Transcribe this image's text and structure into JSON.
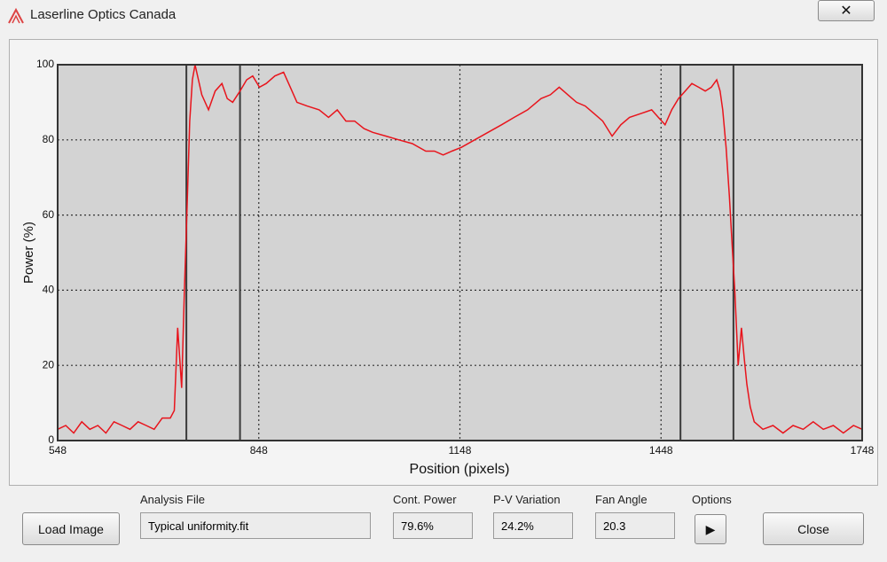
{
  "window": {
    "title": "Laserline Optics Canada"
  },
  "chart_data": {
    "type": "line",
    "ylabel": "Power (%)",
    "xlabel": "Position (pixels)",
    "xlim": [
      548,
      1748
    ],
    "xticks": [
      548,
      848,
      1148,
      1448,
      1748
    ],
    "ylim": [
      0,
      100
    ],
    "yticks": [
      0,
      20,
      40,
      60,
      80,
      100
    ],
    "grid": true,
    "color": "#e8141c",
    "marker_color": "#3a3a3a",
    "markers": [
      740,
      820,
      1477,
      1556
    ],
    "x": [
      548,
      560,
      572,
      584,
      596,
      608,
      620,
      632,
      644,
      656,
      668,
      680,
      692,
      704,
      716,
      722,
      727,
      730,
      733,
      737,
      741,
      745,
      749,
      753,
      763,
      773,
      783,
      793,
      801,
      809,
      820,
      830,
      839,
      849,
      859,
      872,
      885,
      895,
      905,
      920,
      938,
      952,
      965,
      978,
      991,
      1005,
      1018,
      1038,
      1057,
      1077,
      1097,
      1110,
      1123,
      1136,
      1150,
      1170,
      1190,
      1210,
      1229,
      1249,
      1269,
      1283,
      1296,
      1309,
      1322,
      1335,
      1348,
      1361,
      1375,
      1388,
      1401,
      1418,
      1434,
      1444,
      1454,
      1464,
      1474,
      1484,
      1494,
      1504,
      1514,
      1523,
      1531,
      1536,
      1540,
      1545,
      1550,
      1554,
      1558,
      1561,
      1563,
      1566,
      1568,
      1572,
      1576,
      1581,
      1587,
      1600,
      1615,
      1630,
      1645,
      1660,
      1675,
      1690,
      1705,
      1720,
      1735,
      1748
    ],
    "values": [
      3,
      4,
      2,
      5,
      3,
      4,
      2,
      5,
      4,
      3,
      5,
      4,
      3,
      6,
      6,
      8,
      30,
      22,
      14,
      40,
      62,
      85,
      96,
      100,
      92,
      88,
      93,
      95,
      91,
      90,
      93,
      96,
      97,
      94,
      95,
      97,
      98,
      94,
      90,
      89,
      88,
      86,
      88,
      85,
      85,
      83,
      82,
      81,
      80,
      79,
      77,
      77,
      76,
      77,
      78,
      80,
      82,
      84,
      86,
      88,
      91,
      92,
      94,
      92,
      90,
      89,
      87,
      85,
      81,
      84,
      86,
      87,
      88,
      86,
      84,
      88,
      91,
      93,
      95,
      94,
      93,
      94,
      96,
      93,
      88,
      78,
      65,
      52,
      40,
      28,
      20,
      26,
      30,
      22,
      15,
      9,
      5,
      3,
      4,
      2,
      4,
      3,
      5,
      3,
      4,
      2,
      4,
      3
    ]
  },
  "controls": {
    "load_image": "Load Image",
    "analysis_file_label": "Analysis File",
    "analysis_file": "Typical uniformity.fit",
    "cont_power_label": "Cont. Power",
    "cont_power": "79.6%",
    "pv_variation_label": "P-V Variation",
    "pv_variation": "24.2%",
    "fan_angle_label": "Fan Angle",
    "fan_angle": "20.3",
    "options_label": "Options",
    "close": "Close"
  }
}
